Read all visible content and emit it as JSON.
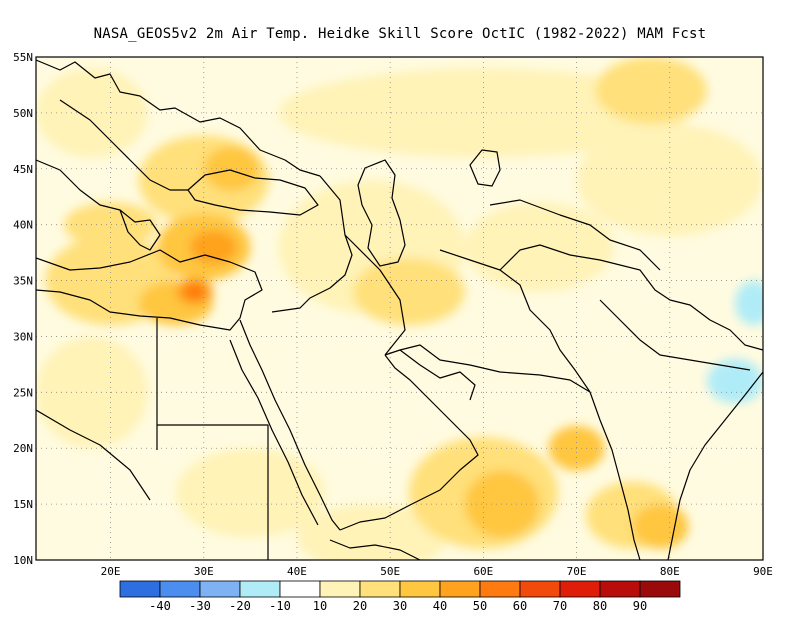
{
  "title": "NASA_GEOS5v2  2m Air Temp. Heidke Skill Score OctIC (1982-2022) MAM Fcst",
  "map": {
    "lon_range": [
      12,
      90
    ],
    "lat_range": [
      10,
      55
    ],
    "lat_ticks": [
      {
        "value": 55,
        "label": "55N"
      },
      {
        "value": 50,
        "label": "50N"
      },
      {
        "value": 45,
        "label": "45N"
      },
      {
        "value": 40,
        "label": "40N"
      },
      {
        "value": 35,
        "label": "35N"
      },
      {
        "value": 30,
        "label": "30N"
      },
      {
        "value": 25,
        "label": "25N"
      },
      {
        "value": 20,
        "label": "20N"
      },
      {
        "value": 15,
        "label": "15N"
      },
      {
        "value": 10,
        "label": "10N"
      }
    ],
    "lon_ticks": [
      {
        "value": 20,
        "label": "20E"
      },
      {
        "value": 30,
        "label": "30E"
      },
      {
        "value": 40,
        "label": "40E"
      },
      {
        "value": 50,
        "label": "50E"
      },
      {
        "value": 60,
        "label": "60E"
      },
      {
        "value": 70,
        "label": "70E"
      },
      {
        "value": 80,
        "label": "80E"
      },
      {
        "value": 90,
        "label": "90E"
      }
    ],
    "grid": "dotted",
    "skill_regions": [
      {
        "level": "10-20",
        "lon": 18,
        "lat": 50,
        "rx": 6,
        "ry": 4
      },
      {
        "level": "10-20",
        "lon": 60,
        "lat": 50,
        "rx": 22,
        "ry": 4
      },
      {
        "level": "10-20",
        "lon": 80,
        "lat": 44,
        "rx": 10,
        "ry": 5
      },
      {
        "level": "10-20",
        "lon": 48,
        "lat": 38,
        "rx": 10,
        "ry": 6
      },
      {
        "level": "10-20",
        "lon": 18,
        "lat": 25,
        "rx": 6,
        "ry": 5
      },
      {
        "level": "10-20",
        "lon": 35,
        "lat": 16,
        "rx": 8,
        "ry": 4
      },
      {
        "level": "10-20",
        "lon": 66,
        "lat": 38,
        "rx": 8,
        "ry": 4
      },
      {
        "level": "10-20",
        "lon": 48,
        "lat": 12,
        "rx": 8,
        "ry": 3
      },
      {
        "level": "20-30",
        "lon": 30,
        "lat": 44,
        "rx": 7,
        "ry": 4
      },
      {
        "level": "20-30",
        "lon": 20,
        "lat": 35,
        "rx": 7,
        "ry": 4
      },
      {
        "level": "20-30",
        "lon": 52,
        "lat": 34,
        "rx": 6,
        "ry": 3
      },
      {
        "level": "20-30",
        "lon": 60,
        "lat": 16,
        "rx": 8,
        "ry": 5
      },
      {
        "level": "20-30",
        "lon": 76,
        "lat": 14,
        "rx": 5,
        "ry": 3
      },
      {
        "level": "20-30",
        "lon": 78,
        "lat": 52,
        "rx": 6,
        "ry": 3
      },
      {
        "level": "20-30",
        "lon": 20,
        "lat": 40,
        "rx": 5,
        "ry": 2
      },
      {
        "level": "30-40",
        "lon": 30,
        "lat": 38,
        "rx": 5,
        "ry": 3
      },
      {
        "level": "30-40",
        "lon": 27,
        "lat": 33,
        "rx": 4,
        "ry": 2
      },
      {
        "level": "30-40",
        "lon": 33,
        "lat": 45,
        "rx": 3,
        "ry": 2
      },
      {
        "level": "30-40",
        "lon": 62,
        "lat": 15,
        "rx": 4,
        "ry": 3
      },
      {
        "level": "30-40",
        "lon": 79,
        "lat": 13,
        "rx": 3,
        "ry": 2
      },
      {
        "level": "30-40",
        "lon": 70,
        "lat": 20,
        "rx": 3,
        "ry": 2
      },
      {
        "level": "40-50",
        "lon": 31,
        "lat": 38,
        "rx": 2.5,
        "ry": 1.5
      },
      {
        "level": "40-50",
        "lon": 29,
        "lat": 34,
        "rx": 2,
        "ry": 1.2
      },
      {
        "level": "50-60",
        "lon": 29,
        "lat": 34,
        "rx": 1.2,
        "ry": 0.8
      },
      {
        "level": "-20--10",
        "lon": 87,
        "lat": 26,
        "rx": 3,
        "ry": 2
      },
      {
        "level": "-20--10",
        "lon": 89,
        "lat": 33,
        "rx": 2,
        "ry": 2
      }
    ]
  },
  "colorbar": {
    "levels": [
      -40,
      -30,
      -20,
      -10,
      10,
      20,
      30,
      40,
      50,
      60,
      70,
      80,
      90
    ],
    "labels": [
      "-40",
      "-30",
      "-20",
      "-10",
      "10",
      "20",
      "30",
      "40",
      "50",
      "60",
      "70",
      "80",
      "90"
    ],
    "colors": [
      "#2d6fe0",
      "#4b8ef0",
      "#7fb2f5",
      "#b0ecf7",
      "#ffffff",
      "#fff3b8",
      "#ffe07a",
      "#ffc640",
      "#ffa21e",
      "#ff7b10",
      "#f24a0a",
      "#de1e08",
      "#b80d0a",
      "#9a0a0a"
    ]
  },
  "level_colors": {
    "-20--10": "#b0ecf7",
    "10-20": "#fff3b8",
    "20-30": "#ffe07a",
    "30-40": "#ffc640",
    "40-50": "#ffa21e",
    "50-60": "#ff7b10"
  }
}
